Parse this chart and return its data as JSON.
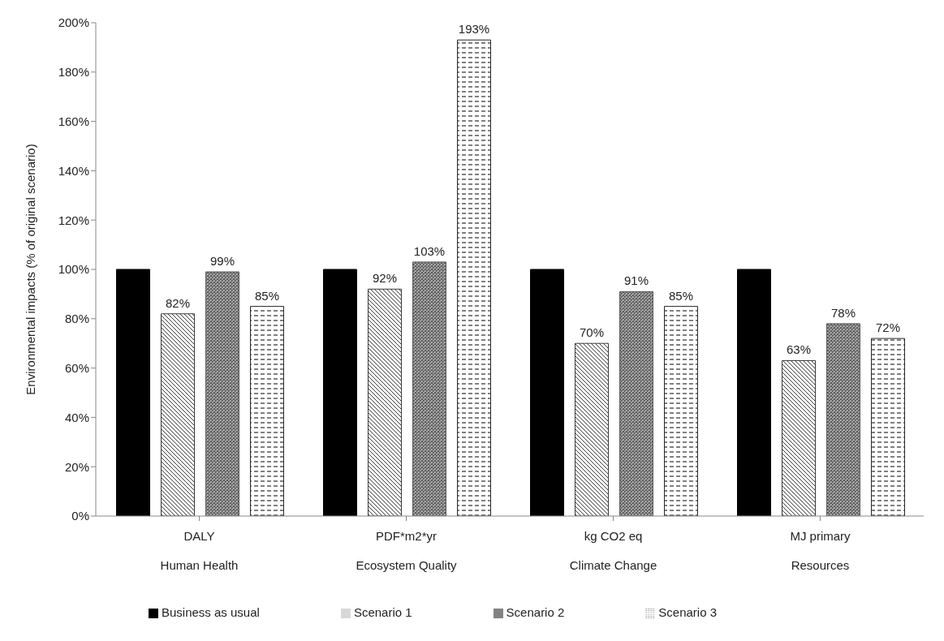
{
  "chart_data": {
    "type": "bar",
    "ylabel": "Environmental impacts (% of original scenario)",
    "categories": [
      "DALY\nHuman Health",
      "PDF*m2*yr\nEcosystem Quality",
      "kg CO2 eq\nClimate Change",
      "MJ primary\nResources"
    ],
    "series": [
      {
        "name": "Business as usual",
        "color": "#000000",
        "values": [
          100,
          100,
          100,
          100
        ],
        "value_labels": [
          null,
          null,
          null,
          null
        ]
      },
      {
        "name": "Scenario 1",
        "color": "#3a3a3a",
        "values": [
          82,
          92,
          70,
          63
        ],
        "value_labels": [
          "82%",
          "92%",
          "70%",
          "63%"
        ]
      },
      {
        "name": "Scenario 2",
        "color": "#5a5a5a",
        "values": [
          99,
          103,
          91,
          78
        ],
        "value_labels": [
          "99%",
          "103%",
          "91%",
          "78%"
        ]
      },
      {
        "name": "Scenario 3",
        "color": "#2a2a2a",
        "values": [
          85,
          193,
          85,
          72
        ],
        "value_labels": [
          "85%",
          "193%",
          "85%",
          "72%"
        ]
      }
    ],
    "ylim": [
      0,
      200
    ],
    "yticks": [
      {
        "value": 0,
        "label": "0%"
      },
      {
        "value": 20,
        "label": "20%"
      },
      {
        "value": 40,
        "label": "40%"
      },
      {
        "value": 60,
        "label": "60%"
      },
      {
        "value": 80,
        "label": "80%"
      },
      {
        "value": 100,
        "label": "100%"
      },
      {
        "value": 120,
        "label": "120%"
      },
      {
        "value": 140,
        "label": "140%"
      },
      {
        "value": 160,
        "label": "160%"
      },
      {
        "value": 180,
        "label": "180%"
      },
      {
        "value": 200,
        "label": "200%"
      }
    ],
    "legend": "bottom"
  }
}
